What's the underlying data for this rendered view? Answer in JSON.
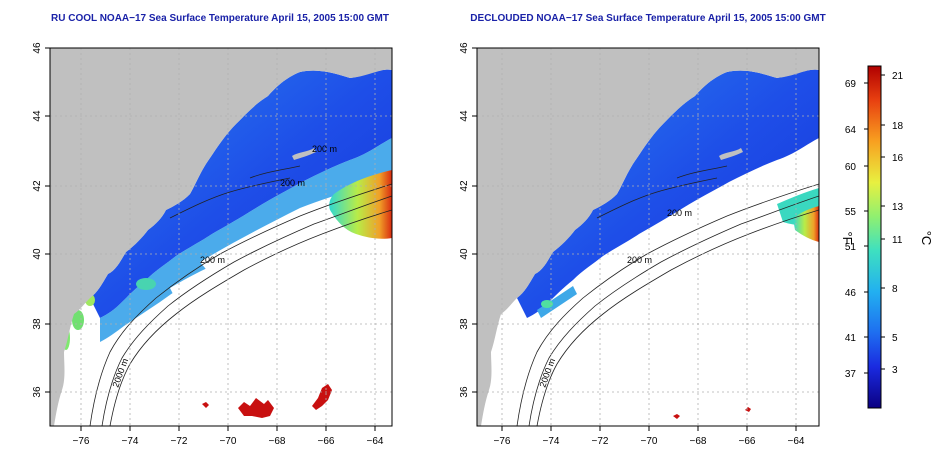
{
  "maps": [
    {
      "title": "RU COOL NOAA−17 Sea Surface Temperature April 15, 2005 15:00 GMT",
      "x_ticks": [
        "−76",
        "−74",
        "−72",
        "−70",
        "−68",
        "−66",
        "−64"
      ],
      "y_ticks": [
        "46",
        "44",
        "42",
        "40",
        "38",
        "36"
      ],
      "contour_labels": [
        "200 m",
        "200 m",
        "200 m",
        "2000 m"
      ],
      "cloud_masked": true
    },
    {
      "title": "DECLOUDED NOAA−17 Sea Surface Temperature April 15, 2005 15:00 GMT",
      "x_ticks": [
        "−76",
        "−74",
        "−72",
        "−70",
        "−68",
        "−66",
        "−64"
      ],
      "y_ticks": [
        "46",
        "44",
        "42",
        "40",
        "38",
        "36"
      ],
      "contour_labels": [
        "200 m",
        "200 m",
        "2000 m"
      ],
      "cloud_masked": false
    }
  ],
  "colorbar": {
    "fahrenheit_ticks": [
      "69",
      "64",
      "60",
      "55",
      "51",
      "46",
      "41",
      "37"
    ],
    "celsius_ticks": [
      "21",
      "18",
      "16",
      "13",
      "11",
      "8",
      "5",
      "3"
    ],
    "fahrenheit_unit": "°F",
    "celsius_unit": "°C",
    "colors": [
      "#0b0082",
      "#1a2ae0",
      "#1e6ef0",
      "#22b0f0",
      "#3ee0c0",
      "#90f070",
      "#e8f040",
      "#f8a020",
      "#e84010",
      "#b00000"
    ]
  },
  "colors": {
    "land": "#c0c0c0",
    "title": "#1a22a8",
    "grid": "#b0b0b0"
  }
}
